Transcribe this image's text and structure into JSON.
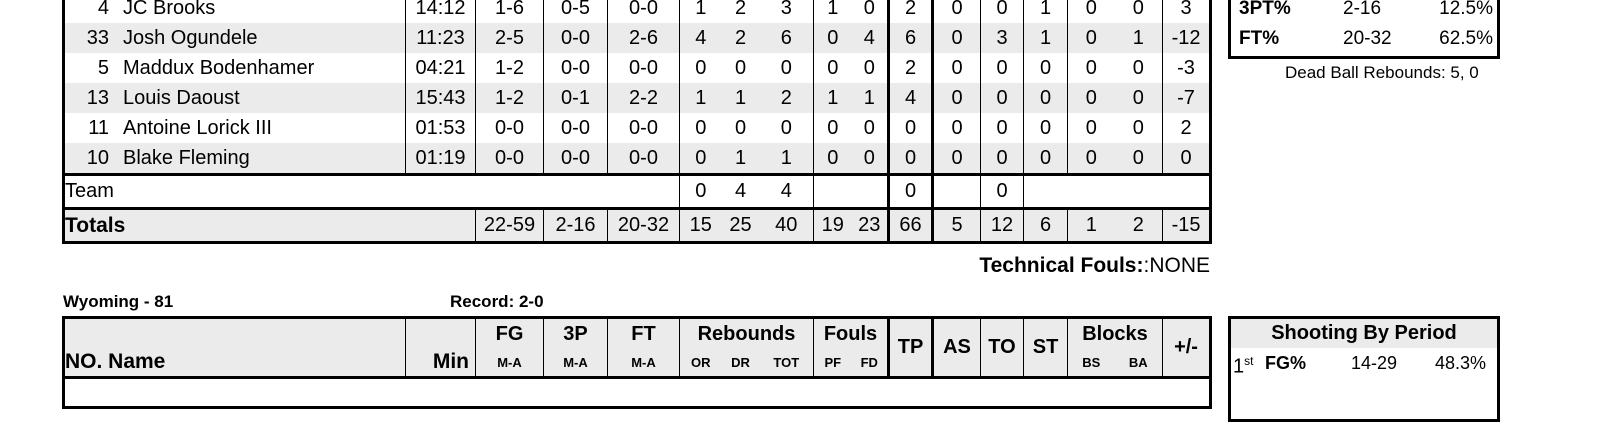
{
  "top_table": {
    "players": [
      {
        "no": "4",
        "name": "JC Brooks",
        "min": "14:12",
        "fg": "1-6",
        "tp3": "0-5",
        "ft": "0-0",
        "or": "1",
        "dr": "2",
        "tot": "3",
        "pf": "1",
        "fd": "0",
        "tp": "2",
        "as": "0",
        "to": "0",
        "st": "1",
        "bs": "0",
        "ba": "0",
        "pm": "3"
      },
      {
        "no": "33",
        "name": "Josh Ogundele",
        "min": "11:23",
        "fg": "2-5",
        "tp3": "0-0",
        "ft": "2-6",
        "or": "4",
        "dr": "2",
        "tot": "6",
        "pf": "0",
        "fd": "4",
        "tp": "6",
        "as": "0",
        "to": "3",
        "st": "1",
        "bs": "0",
        "ba": "1",
        "pm": "-12"
      },
      {
        "no": "5",
        "name": "Maddux Bodenhamer",
        "min": "04:21",
        "fg": "1-2",
        "tp3": "0-0",
        "ft": "0-0",
        "or": "0",
        "dr": "0",
        "tot": "0",
        "pf": "0",
        "fd": "0",
        "tp": "2",
        "as": "0",
        "to": "0",
        "st": "0",
        "bs": "0",
        "ba": "0",
        "pm": "-3"
      },
      {
        "no": "13",
        "name": "Louis Daoust",
        "min": "15:43",
        "fg": "1-2",
        "tp3": "0-1",
        "ft": "2-2",
        "or": "1",
        "dr": "1",
        "tot": "2",
        "pf": "1",
        "fd": "1",
        "tp": "4",
        "as": "0",
        "to": "0",
        "st": "0",
        "bs": "0",
        "ba": "0",
        "pm": "-7"
      },
      {
        "no": "11",
        "name": "Antoine Lorick III",
        "min": "01:53",
        "fg": "0-0",
        "tp3": "0-0",
        "ft": "0-0",
        "or": "0",
        "dr": "0",
        "tot": "0",
        "pf": "0",
        "fd": "0",
        "tp": "0",
        "as": "0",
        "to": "0",
        "st": "0",
        "bs": "0",
        "ba": "0",
        "pm": "2"
      },
      {
        "no": "10",
        "name": "Blake Fleming",
        "min": "01:19",
        "fg": "0-0",
        "tp3": "0-0",
        "ft": "0-0",
        "or": "0",
        "dr": "1",
        "tot": "1",
        "pf": "0",
        "fd": "0",
        "tp": "0",
        "as": "0",
        "to": "0",
        "st": "0",
        "bs": "0",
        "ba": "0",
        "pm": "0"
      }
    ],
    "team": {
      "label": "Team",
      "or": "0",
      "dr": "4",
      "tot": "4",
      "tp": "0",
      "to": "0"
    },
    "totals": {
      "label": "Totals",
      "fg": "22-59",
      "tp3": "2-16",
      "ft": "20-32",
      "or": "15",
      "dr": "25",
      "tot": "40",
      "pf": "19",
      "fd": "23",
      "tp": "66",
      "as": "5",
      "to": "12",
      "st": "6",
      "bs": "1",
      "ba": "2",
      "pm": "-15"
    }
  },
  "top_shooting": [
    {
      "label": "3PT%",
      "made": "2-16",
      "pct": "12.5%"
    },
    {
      "label": "FT%",
      "made": "20-32",
      "pct": "62.5%"
    }
  ],
  "dead_ball": "Dead Ball Rebounds: 5, 0",
  "technical": {
    "label": "Technical Fouls:",
    "value": ":NONE"
  },
  "wyoming": {
    "team_score": "Wyoming - 81",
    "record": "Record: 2-0",
    "headers": {
      "no_name": "NO. Name",
      "min": "Min",
      "fg": "FG",
      "tp3": "3P",
      "ft": "FT",
      "ma": "M-A",
      "reb": "Rebounds",
      "or": "OR",
      "dr": "DR",
      "tot": "TOT",
      "fouls": "Fouls",
      "pf": "PF",
      "fd": "FD",
      "tp": "TP",
      "as": "AS",
      "to": "TO",
      "st": "ST",
      "blocks": "Blocks",
      "bs": "BS",
      "ba": "BA",
      "pm": "+/-"
    },
    "shooting_title": "Shooting By Period",
    "period": {
      "ord": "1",
      "sup": "st",
      "label": "FG%",
      "made": "14-29",
      "pct": "48.3%"
    }
  }
}
